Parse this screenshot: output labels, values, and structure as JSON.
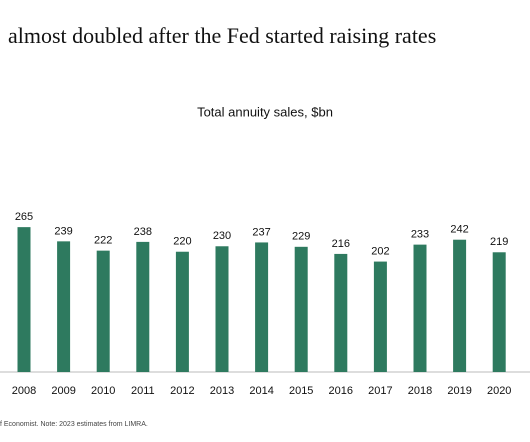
{
  "chart_data": {
    "type": "bar",
    "title": "almost doubled after the Fed started raising rates",
    "subtitle": "Total annuity sales, $bn",
    "categories": [
      "2008",
      "2009",
      "2010",
      "2011",
      "2012",
      "2013",
      "2014",
      "2015",
      "2016",
      "2017",
      "2018",
      "2019",
      "2020"
    ],
    "values": [
      265,
      239,
      222,
      238,
      220,
      230,
      237,
      229,
      216,
      202,
      233,
      242,
      219
    ],
    "color": "#2e7a5f",
    "ylim": [
      0,
      300
    ],
    "footnote": "f Economist. Note: 2023 estimates from LIMRA."
  }
}
